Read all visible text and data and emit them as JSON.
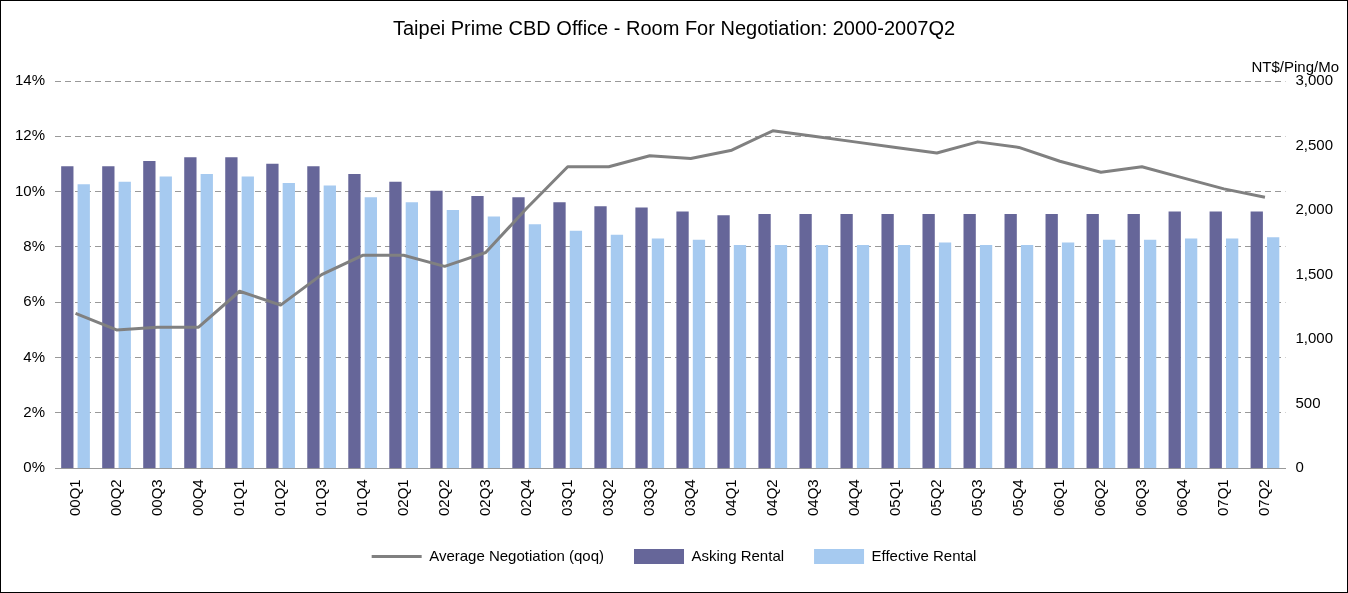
{
  "chart_data": {
    "type": "bar",
    "title": "Taipei Prime CBD Office - Room For Negotiation: 2000-2007Q2",
    "y2label": "NT$/Ping/Mo",
    "categories": [
      "00Q1",
      "00Q2",
      "00Q3",
      "00Q4",
      "01Q1",
      "01Q2",
      "01Q3",
      "01Q4",
      "02Q1",
      "02Q2",
      "02Q3",
      "02Q4",
      "03Q1",
      "03Q2",
      "03Q3",
      "03Q4",
      "04Q1",
      "04Q2",
      "04Q3",
      "04Q4",
      "05Q1",
      "05Q2",
      "05Q3",
      "05Q4",
      "06Q1",
      "06Q2",
      "06Q3",
      "06Q4",
      "07Q1",
      "07Q2"
    ],
    "series": [
      {
        "name": "Asking Rental",
        "axis": "y2",
        "color": "#666699",
        "values": [
          2340,
          2340,
          2380,
          2410,
          2410,
          2360,
          2340,
          2280,
          2220,
          2150,
          2110,
          2100,
          2060,
          2030,
          2020,
          1990,
          1960,
          1970,
          1970,
          1970,
          1970,
          1970,
          1970,
          1970,
          1970,
          1970,
          1970,
          1990,
          1990,
          1990
        ]
      },
      {
        "name": "Effective Rental",
        "axis": "y2",
        "color": "#a6caf0",
        "values": [
          2200,
          2220,
          2260,
          2280,
          2260,
          2210,
          2190,
          2100,
          2060,
          2000,
          1950,
          1890,
          1840,
          1810,
          1780,
          1770,
          1730,
          1730,
          1730,
          1730,
          1730,
          1750,
          1730,
          1730,
          1750,
          1770,
          1770,
          1780,
          1780,
          1790
        ]
      },
      {
        "name": "Average Negotiation (qoq)",
        "type": "line",
        "axis": "y",
        "color": "#808080",
        "values": [
          5.6,
          5.0,
          5.1,
          5.1,
          6.4,
          5.9,
          7.0,
          7.7,
          7.7,
          7.3,
          7.8,
          9.4,
          10.9,
          10.9,
          11.3,
          11.2,
          11.5,
          12.2,
          12.0,
          11.8,
          11.6,
          11.4,
          11.8,
          11.6,
          11.1,
          10.7,
          10.9,
          10.5,
          10.1,
          9.8
        ]
      }
    ],
    "ylim": [
      0,
      14
    ],
    "yticks": [
      {
        "value": 0,
        "label": "0%"
      },
      {
        "value": 2,
        "label": "2%"
      },
      {
        "value": 4,
        "label": "4%"
      },
      {
        "value": 6,
        "label": "6%"
      },
      {
        "value": 8,
        "label": "8%"
      },
      {
        "value": 10,
        "label": "10%"
      },
      {
        "value": 12,
        "label": "12%"
      },
      {
        "value": 14,
        "label": "14%"
      }
    ],
    "y2lim": [
      0,
      3000
    ],
    "y2ticks": [
      0,
      {
        "value": 500,
        "label": "500"
      },
      {
        "value": 1000,
        "label": "1,000"
      },
      {
        "value": 1500,
        "label": "1,500"
      },
      {
        "value": 2000,
        "label": "2,000"
      },
      {
        "value": 2500,
        "label": "2,500"
      },
      {
        "value": 3000,
        "label": "3,000"
      }
    ],
    "grid": "y",
    "legend": "bottom",
    "marker": "none",
    "line_style": "solid"
  }
}
